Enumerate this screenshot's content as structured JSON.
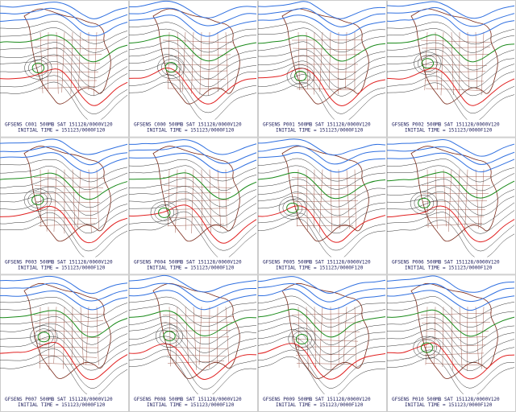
{
  "panels": [
    {
      "title": "GFSENS C001 500MB SAT 151128/0000V120",
      "initial": "INITIAL TIME = 151123/0000F120"
    },
    {
      "title": "GFSENS C000 500MB SAT 151128/0000V120",
      "initial": "INITIAL TIME = 151123/0000F120"
    },
    {
      "title": "GFSENS P001 500MB SAT 151128/0000V120",
      "initial": "INITIAL TIME = 151123/0000F120"
    },
    {
      "title": "GFSENS P002 500MB SAT 151128/0000V120",
      "initial": "INITIAL TIME = 151123/0000F120"
    },
    {
      "title": "GFSENS P003 500MB SAT 151128/0000V120",
      "initial": "INITIAL TIME = 151123/0000F120"
    },
    {
      "title": "GFSENS P004 500MB SAT 151128/0000V120",
      "initial": "INITIAL TIME = 151123/0000F120"
    },
    {
      "title": "GFSENS P005 500MB SAT 151128/0000V120",
      "initial": "INITIAL TIME = 151123/0000F120"
    },
    {
      "title": "GFSENS P006 500MB SAT 151128/0000V120",
      "initial": "INITIAL TIME = 151123/0000F120"
    },
    {
      "title": "GFSENS P007 500MB SAT 151128/0000V120",
      "initial": "INITIAL TIME = 151123/0000F120"
    },
    {
      "title": "GFSENS P008 500MB SAT 151128/0000V120",
      "initial": "INITIAL TIME = 151123/0000F120"
    },
    {
      "title": "GFSENS P009 500MB SAT 151128/0000V120",
      "initial": "INITIAL TIME = 151123/0000F120"
    },
    {
      "title": "GFSENS P010 500MB SAT 151128/0000V120",
      "initial": "INITIAL TIME = 151123/0000F120"
    }
  ]
}
